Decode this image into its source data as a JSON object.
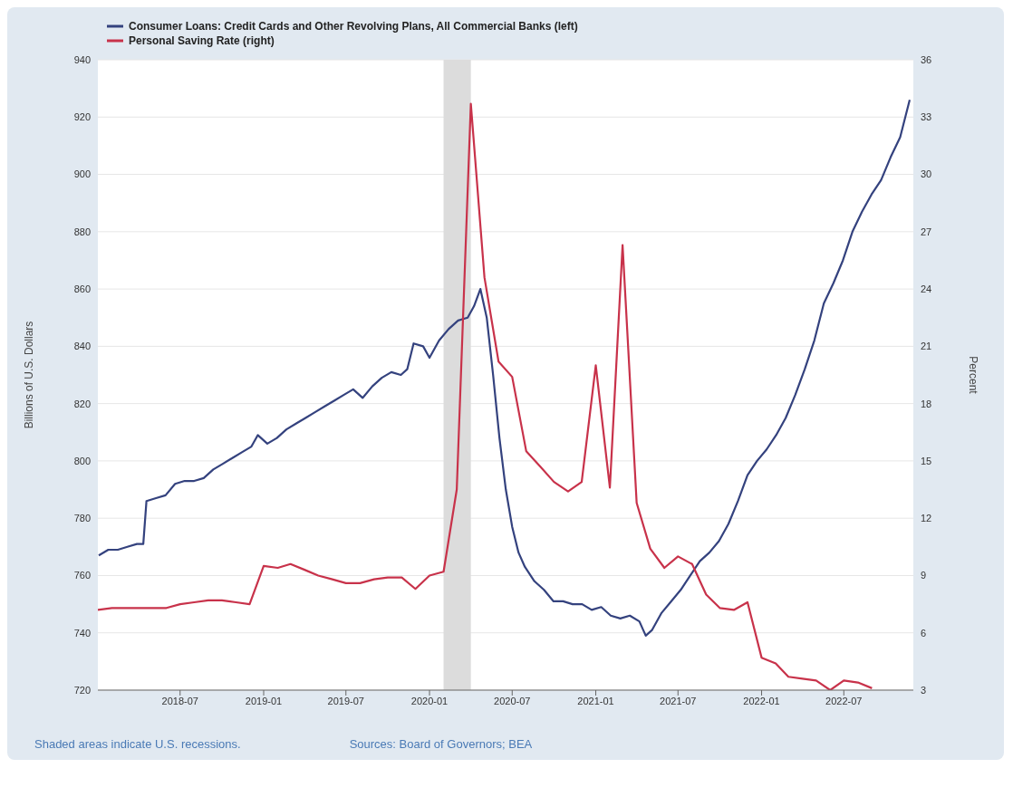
{
  "chart_data": {
    "type": "line",
    "xlim": [
      "2018-01-01",
      "2022-12-01"
    ],
    "xticks": [
      "2018-07",
      "2019-01",
      "2019-07",
      "2020-01",
      "2020-07",
      "2021-01",
      "2021-07",
      "2022-01",
      "2022-07"
    ],
    "ylim": [
      720,
      940
    ],
    "yticks": [
      720,
      740,
      760,
      780,
      800,
      820,
      840,
      860,
      880,
      900,
      920,
      940
    ],
    "y2lim": [
      3,
      36
    ],
    "y2ticks": [
      3,
      6,
      9,
      12,
      15,
      18,
      21,
      24,
      27,
      30,
      33,
      36
    ],
    "ylabel": "Billions of U.S. Dollars",
    "y2label": "Percent",
    "grid": "y",
    "legend": "top left",
    "marker": "none",
    "line_style": "solid",
    "bands": [
      {
        "axis": "x",
        "from": "2020-02",
        "to": "2020-04",
        "color": "#dcdcdc"
      }
    ],
    "annotations": [
      "Shaded areas indicate U.S. recessions.",
      "Sources: Board of Governors; BEA"
    ],
    "series": [
      {
        "name": "Consumer Loans: Credit Cards and Other Revolving Plans, All Commercial Banks (left)",
        "color": "#34427e",
        "axis": "y",
        "x": [
          "2018-01-03",
          "2018-01-24",
          "2018-02-14",
          "2018-03-07",
          "2018-03-28",
          "2018-04-11",
          "2018-04-18",
          "2018-05-09",
          "2018-05-30",
          "2018-06-20",
          "2018-07-11",
          "2018-08-01",
          "2018-08-22",
          "2018-09-12",
          "2018-10-03",
          "2018-10-24",
          "2018-11-14",
          "2018-12-05",
          "2018-12-19",
          "2019-01-09",
          "2019-01-30",
          "2019-02-20",
          "2019-03-13",
          "2019-04-03",
          "2019-04-24",
          "2019-05-15",
          "2019-06-05",
          "2019-06-26",
          "2019-07-17",
          "2019-08-07",
          "2019-08-28",
          "2019-09-18",
          "2019-10-09",
          "2019-10-30",
          "2019-11-13",
          "2019-11-27",
          "2019-12-18",
          "2020-01-01",
          "2020-01-22",
          "2020-02-12",
          "2020-03-04",
          "2020-03-25",
          "2020-04-08",
          "2020-04-22",
          "2020-05-06",
          "2020-05-20",
          "2020-06-03",
          "2020-06-17",
          "2020-07-01",
          "2020-07-15",
          "2020-07-29",
          "2020-08-19",
          "2020-09-09",
          "2020-09-30",
          "2020-10-21",
          "2020-11-11",
          "2020-12-02",
          "2020-12-23",
          "2021-01-13",
          "2021-02-03",
          "2021-02-24",
          "2021-03-17",
          "2021-04-07",
          "2021-04-21",
          "2021-05-05",
          "2021-05-26",
          "2021-06-16",
          "2021-07-07",
          "2021-07-28",
          "2021-08-18",
          "2021-09-08",
          "2021-09-29",
          "2021-10-20",
          "2021-11-10",
          "2021-12-01",
          "2021-12-22",
          "2022-01-12",
          "2022-02-02",
          "2022-02-23",
          "2022-03-16",
          "2022-04-06",
          "2022-04-27",
          "2022-05-18",
          "2022-06-08",
          "2022-06-29",
          "2022-07-20",
          "2022-08-10",
          "2022-08-31",
          "2022-09-21",
          "2022-10-12",
          "2022-11-02",
          "2022-11-23"
        ],
        "values": [
          767,
          769,
          769,
          770,
          771,
          771,
          786,
          787,
          788,
          792,
          793,
          793,
          794,
          797,
          799,
          801,
          803,
          805,
          809,
          806,
          808,
          811,
          813,
          815,
          817,
          819,
          821,
          823,
          825,
          822,
          826,
          829,
          831,
          830,
          832,
          841,
          840,
          836,
          842,
          846,
          849,
          850,
          854,
          860,
          850,
          830,
          808,
          790,
          777,
          768,
          763,
          758,
          755,
          751,
          751,
          750,
          750,
          748,
          749,
          746,
          745,
          746,
          744,
          739,
          741,
          747,
          751,
          755,
          760,
          765,
          768,
          772,
          778,
          786,
          795,
          800,
          804,
          809,
          815,
          823,
          832,
          842,
          855,
          862,
          870,
          880,
          887,
          893,
          898,
          906,
          913,
          926
        ]
      },
      {
        "name": "Personal Saving Rate (right)",
        "color": "#c8324a",
        "axis": "y2",
        "x": [
          "2018-01",
          "2018-02",
          "2018-03",
          "2018-04",
          "2018-05",
          "2018-06",
          "2018-07",
          "2018-08",
          "2018-09",
          "2018-10",
          "2018-11",
          "2018-12",
          "2019-01",
          "2019-02",
          "2019-03",
          "2019-04",
          "2019-05",
          "2019-06",
          "2019-07",
          "2019-08",
          "2019-09",
          "2019-10",
          "2019-11",
          "2019-12",
          "2020-01",
          "2020-02",
          "2020-03",
          "2020-04",
          "2020-05",
          "2020-06",
          "2020-07",
          "2020-08",
          "2020-09",
          "2020-10",
          "2020-11",
          "2020-12",
          "2021-01",
          "2021-02",
          "2021-03",
          "2021-04",
          "2021-05",
          "2021-06",
          "2021-07",
          "2021-08",
          "2021-09",
          "2021-10",
          "2021-11",
          "2021-12",
          "2022-01",
          "2022-02",
          "2022-03",
          "2022-04",
          "2022-05",
          "2022-06",
          "2022-07",
          "2022-08",
          "2022-09"
        ],
        "values": [
          7.2,
          7.3,
          7.3,
          7.3,
          7.3,
          7.3,
          7.5,
          7.6,
          7.7,
          7.7,
          7.6,
          7.5,
          9.5,
          9.4,
          9.6,
          9.3,
          9.0,
          8.8,
          8.6,
          8.6,
          8.8,
          8.9,
          8.9,
          8.3,
          9.0,
          9.2,
          13.5,
          33.7,
          24.6,
          20.2,
          19.4,
          15.5,
          14.7,
          13.9,
          13.4,
          13.9,
          20.0,
          13.6,
          26.3,
          12.8,
          10.4,
          9.4,
          10.0,
          9.6,
          8.0,
          7.3,
          7.2,
          7.6,
          4.7,
          4.4,
          3.7,
          3.6,
          3.5,
          3.0,
          3.5,
          3.4,
          3.1
        ]
      }
    ]
  }
}
